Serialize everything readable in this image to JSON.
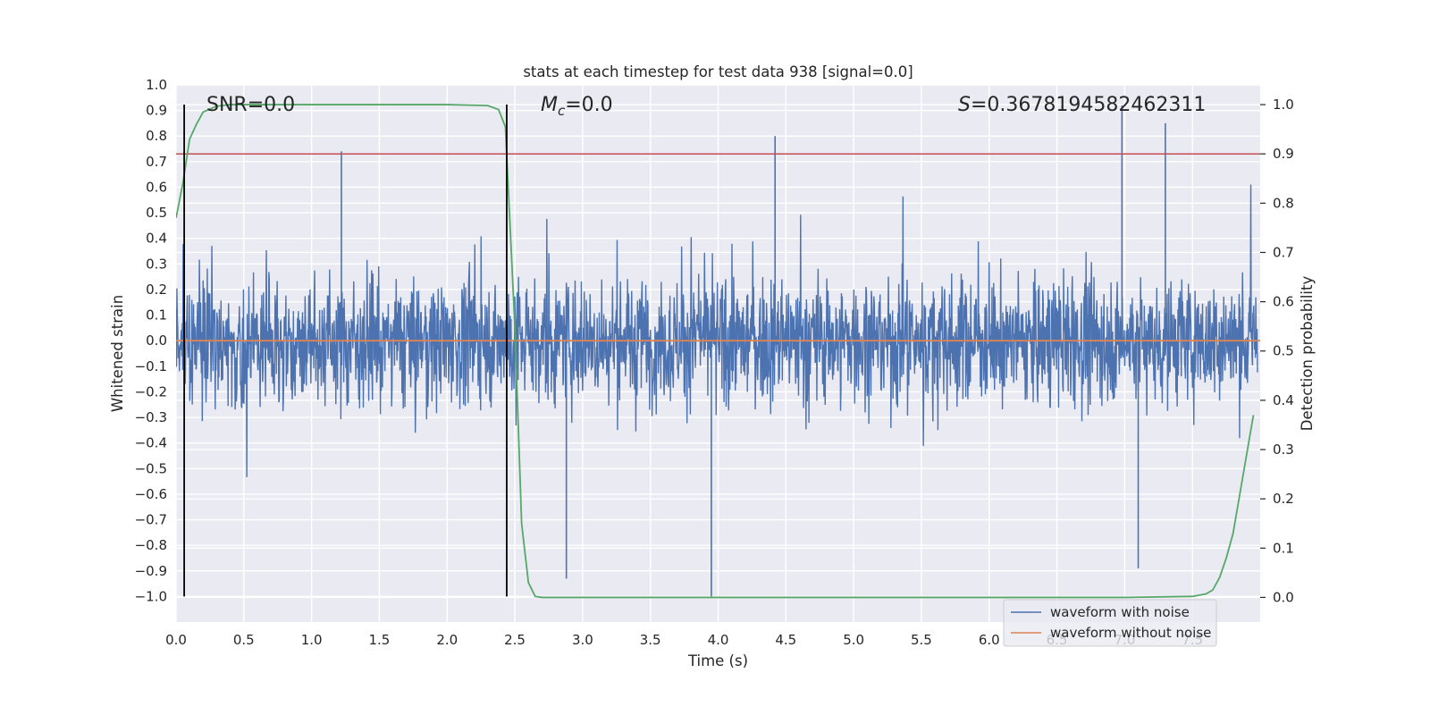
{
  "chart_data": {
    "type": "line",
    "title": "stats at each timestep for test data 938 [signal=0.0]",
    "xlabel": "Time (s)",
    "ylabel": "Whitened strain",
    "ylabel_right": "Detection probability",
    "xlim": [
      0.0,
      8.0
    ],
    "ylim": [
      -1.1,
      1.0
    ],
    "ylim_right": [
      -0.05,
      1.04
    ],
    "x_ticks": [
      "0.0",
      "0.5",
      "1.0",
      "1.5",
      "2.0",
      "2.5",
      "3.0",
      "3.5",
      "4.0",
      "4.5",
      "5.0",
      "5.5",
      "6.0",
      "6.5",
      "7.0",
      "7.5"
    ],
    "y_ticks": [
      "1.0",
      "0.9",
      "0.8",
      "0.7",
      "0.6",
      "0.5",
      "0.4",
      "0.3",
      "0.2",
      "0.1",
      "0.0",
      "−0.1",
      "−0.2",
      "−0.3",
      "−0.4",
      "−0.5",
      "−0.6",
      "−0.7",
      "−0.8",
      "−0.9",
      "−1.0"
    ],
    "y_ticks_right": [
      "1.0",
      "0.9",
      "0.8",
      "0.7",
      "0.6",
      "0.5",
      "0.4",
      "0.3",
      "0.2",
      "0.1",
      "0.0"
    ],
    "annotations": {
      "snr": "SNR=0.0",
      "mc_symbol": "M",
      "mc_subscript": "c",
      "mc_value": "=0.0",
      "s_symbol": "S",
      "s_value": "=0.3678194582462311"
    },
    "series": [
      {
        "name": "waveform with noise",
        "color": "#4c72b0",
        "axis": "left",
        "description": "dense noise, mostly within ±0.45 with spikes to about ±0.8",
        "spike_peaks": [
          [
            1.22,
            0.74
          ],
          [
            4.42,
            0.8
          ],
          [
            6.98,
            0.92
          ],
          [
            7.3,
            0.85
          ],
          [
            2.88,
            -0.93
          ],
          [
            3.95,
            -1.0
          ],
          [
            7.1,
            -0.89
          ]
        ]
      },
      {
        "name": "waveform without noise",
        "color": "#dd8452",
        "axis": "left",
        "x": [
          0.0,
          8.0
        ],
        "values": [
          0.0,
          0.0
        ]
      },
      {
        "name": "detection probability",
        "color": "#55a868",
        "axis": "right",
        "x": [
          0.0,
          0.05,
          0.1,
          0.15,
          0.2,
          0.3,
          0.4,
          0.5,
          1.0,
          2.0,
          2.3,
          2.38,
          2.43,
          2.5,
          2.55,
          2.6,
          2.65,
          2.7,
          3.0,
          4.0,
          5.0,
          6.0,
          7.0,
          7.5,
          7.6,
          7.65,
          7.7,
          7.75,
          7.8,
          7.85,
          7.9,
          7.95
        ],
        "values": [
          0.77,
          0.84,
          0.93,
          0.96,
          0.985,
          0.997,
          1.0,
          1.0,
          1.0,
          1.0,
          0.998,
          0.99,
          0.955,
          0.55,
          0.15,
          0.03,
          0.002,
          0.0,
          0.0,
          0.0,
          0.0,
          0.0,
          0.0,
          0.002,
          0.007,
          0.015,
          0.04,
          0.08,
          0.13,
          0.21,
          0.29,
          0.37
        ]
      }
    ],
    "threshold": {
      "value": 0.9,
      "axis": "right",
      "color": "#c44e52"
    },
    "vertical_markers": [
      0.06,
      2.44
    ],
    "legend": {
      "position": "bottom-right",
      "entries": [
        {
          "label": "waveform with noise",
          "color": "#4c72b0"
        },
        {
          "label": "waveform without noise",
          "color": "#dd8452"
        }
      ]
    },
    "grid": true
  }
}
